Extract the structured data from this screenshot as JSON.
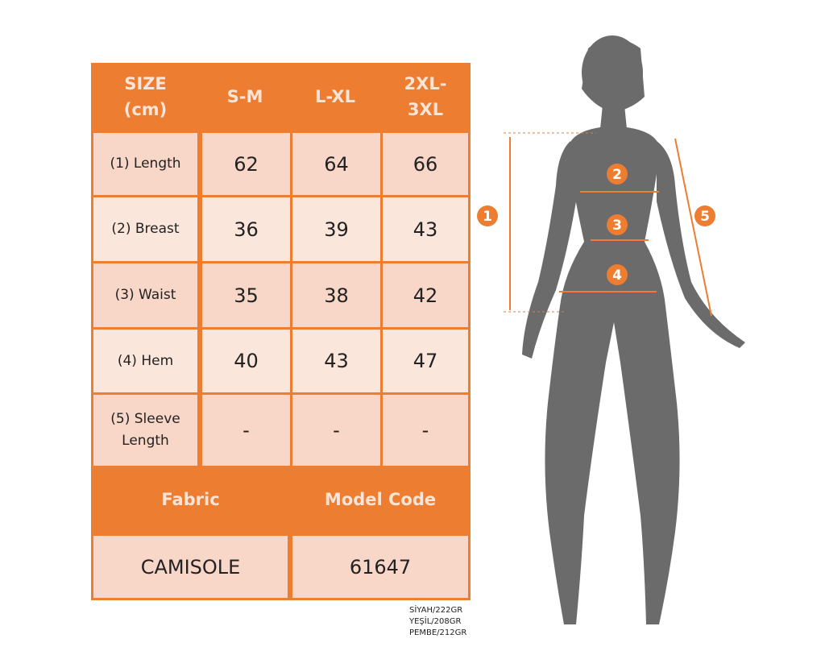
{
  "table": {
    "headers": [
      "SIZE\n(cm)",
      "S-M",
      "L-XL",
      "2XL-\n3XL"
    ],
    "rows": [
      {
        "label": "(1) Length",
        "values": [
          "62",
          "64",
          "66"
        ]
      },
      {
        "label": "(2) Breast",
        "values": [
          "36",
          "39",
          "43"
        ]
      },
      {
        "label": "(3) Waist",
        "values": [
          "35",
          "38",
          "42"
        ]
      },
      {
        "label": "(4) Hem",
        "values": [
          "40",
          "43",
          "47"
        ]
      },
      {
        "label": "(5) Sleeve\nLength",
        "values": [
          "-",
          "-",
          "-"
        ]
      }
    ],
    "footer_headers": [
      "Fabric",
      "Model Code"
    ],
    "footer_values": [
      "CAMISOLE",
      "61647"
    ]
  },
  "weights": [
    "SİYAH/222GR",
    "YEŞİL/208GR",
    "PEMBE/212GR"
  ],
  "figure": {
    "markers": [
      "1",
      "2",
      "3",
      "4",
      "5"
    ]
  },
  "colors": {
    "accent": "#ED7D31",
    "cell_dark": "#F8D7C8",
    "cell_light": "#FBE6DC",
    "silhouette": "#6b6b6b"
  }
}
